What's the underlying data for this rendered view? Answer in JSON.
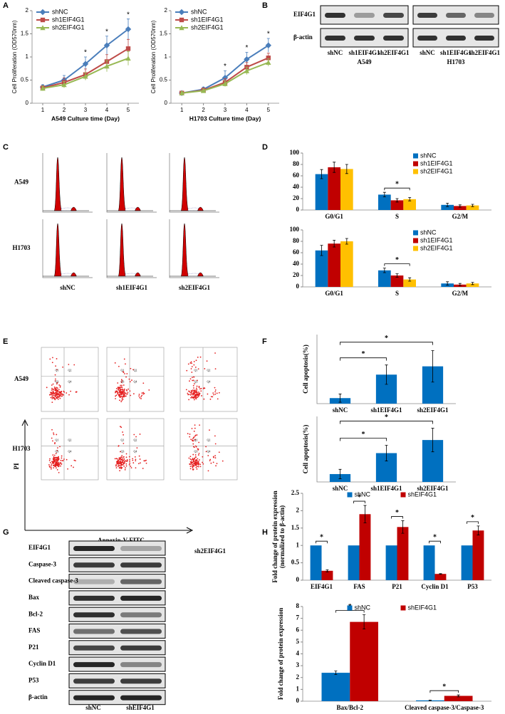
{
  "panel_labels": [
    "A",
    "B",
    "C",
    "D",
    "E",
    "F",
    "G",
    "H"
  ],
  "blot_B": {
    "rows": [
      "EIF4G1",
      "β-actin"
    ],
    "lanes": [
      "shNC",
      "sh1EIF4G1",
      "sh2EIF4G1",
      "shNC",
      "sh1EIF4G1",
      "sh2EIF4G1"
    ],
    "cells": [
      "A549",
      "H1703"
    ]
  },
  "cell_cycle_C": {
    "rows": [
      "A549",
      "H1703"
    ],
    "columns": [
      "shNC",
      "sh1EIF4G1",
      "sh2EIF4G1"
    ]
  },
  "flow_E": {
    "rows": [
      "A549",
      "H1703"
    ],
    "columns": [
      "shNC",
      "sh1EIF4G1",
      "sh2EIF4G1"
    ],
    "y_axis": "PI",
    "x_axis": "Annexin-V-FITC",
    "quadrants": [
      "Q1",
      "Q2",
      "Q3",
      "Q4"
    ]
  },
  "blot_G": {
    "rows": [
      "EIF4G1",
      "Caspase-3",
      "Cleaved caspase-3",
      "Bax",
      "Bcl-2",
      "FAS",
      "P21",
      "Cyclin D1",
      "P53",
      "β-actin"
    ],
    "columns": [
      "shNC",
      "shEIF4G1"
    ]
  },
  "chart_data": [
    {
      "type": "line",
      "ylabel": "Cell Proliferation (OD570nm)",
      "xlabel": "A549  Culture time (Day)",
      "legend": "upper left",
      "x": [
        1,
        2,
        3,
        4,
        5
      ],
      "xlim": [
        0.5,
        5.5
      ],
      "xticks": [
        1,
        2,
        3,
        4,
        5
      ],
      "ylim": [
        0,
        2
      ],
      "yticks": [
        0,
        0.5,
        1,
        1.5,
        2
      ],
      "series": [
        {
          "name": "shNC",
          "color": "#4a7ebb",
          "marker": "diamond",
          "values": [
            0.35,
            0.5,
            0.85,
            1.25,
            1.6
          ],
          "errors": [
            0.05,
            0.1,
            0.15,
            0.2,
            0.22
          ]
        },
        {
          "name": "sh1EIF4G1",
          "color": "#be4b48",
          "marker": "square",
          "values": [
            0.33,
            0.45,
            0.62,
            0.9,
            1.18
          ],
          "errors": [
            0.05,
            0.1,
            0.12,
            0.15,
            0.2
          ]
        },
        {
          "name": "sh2EIF4G1",
          "color": "#98b954",
          "marker": "triangle",
          "values": [
            0.32,
            0.4,
            0.58,
            0.8,
            0.97
          ],
          "errors": [
            0.05,
            0.07,
            0.08,
            0.12,
            0.15
          ]
        }
      ],
      "annotations": [
        {
          "x": 3,
          "text": "*"
        },
        {
          "x": 4,
          "text": "*"
        },
        {
          "x": 5,
          "text": "*"
        }
      ]
    },
    {
      "type": "line",
      "ylabel": "Cell Proliferation (OD570nm)",
      "xlabel": "H1703 Culture time (Day)",
      "legend": "upper left",
      "x": [
        1,
        2,
        3,
        4,
        5
      ],
      "xlim": [
        0.5,
        5.5
      ],
      "xticks": [
        1,
        2,
        3,
        4,
        5
      ],
      "ylim": [
        0,
        2
      ],
      "yticks": [
        0,
        0.5,
        1,
        1.5,
        2
      ],
      "series": [
        {
          "name": "shNC",
          "color": "#4a7ebb",
          "marker": "diamond",
          "values": [
            0.22,
            0.3,
            0.55,
            0.95,
            1.25
          ],
          "errors": [
            0.03,
            0.05,
            0.15,
            0.15,
            0.15
          ]
        },
        {
          "name": "sh1EIF4G1",
          "color": "#be4b48",
          "marker": "square",
          "values": [
            0.22,
            0.28,
            0.45,
            0.78,
            0.98
          ],
          "errors": [
            0.03,
            0.05,
            0.08,
            0.1,
            0.1
          ]
        },
        {
          "name": "sh2EIF4G1",
          "color": "#98b954",
          "marker": "triangle",
          "values": [
            0.22,
            0.27,
            0.42,
            0.7,
            0.88
          ],
          "errors": [
            0.03,
            0.04,
            0.06,
            0.08,
            0.08
          ]
        }
      ],
      "annotations": [
        {
          "x": 3,
          "text": "*"
        },
        {
          "x": 4,
          "text": "*"
        },
        {
          "x": 5,
          "text": "*"
        }
      ]
    },
    {
      "type": "bar",
      "legend": "upper right",
      "categories": [
        "G0/G1",
        "S",
        "G2/M"
      ],
      "ylim": [
        0,
        100
      ],
      "yticks": [
        0,
        20,
        40,
        60,
        80,
        100
      ],
      "series": [
        {
          "name": "shNC",
          "color": "#0070c0",
          "values": [
            63,
            27,
            9
          ],
          "errors": [
            8,
            4,
            3
          ]
        },
        {
          "name": "sh1EIF4G1",
          "color": "#c00000",
          "values": [
            75,
            17,
            7
          ],
          "errors": [
            9,
            3,
            2
          ]
        },
        {
          "name": "sh2EIF4G1",
          "color": "#ffc000",
          "values": [
            72,
            19,
            8
          ],
          "errors": [
            8,
            3,
            2
          ]
        }
      ],
      "annotations": [
        {
          "category": 1,
          "text": "*"
        }
      ]
    },
    {
      "type": "bar",
      "legend": "upper right",
      "categories": [
        "G0/G1",
        "S",
        "G2/M"
      ],
      "ylim": [
        0,
        100
      ],
      "yticks": [
        0,
        20,
        40,
        60,
        80,
        100
      ],
      "series": [
        {
          "name": "shNC",
          "color": "#0070c0",
          "values": [
            64,
            29,
            6
          ],
          "errors": [
            9,
            4,
            3
          ]
        },
        {
          "name": "sh1EIF4G1",
          "color": "#c00000",
          "values": [
            76,
            20,
            4
          ],
          "errors": [
            6,
            3,
            2
          ]
        },
        {
          "name": "sh2EIF4G1",
          "color": "#ffc000",
          "values": [
            80,
            13,
            6
          ],
          "errors": [
            5,
            3,
            2
          ]
        }
      ],
      "annotations": [
        {
          "category": 1,
          "text": "*"
        }
      ]
    },
    {
      "type": "bar",
      "ylabel": "Cell apoptosis(%)",
      "categories": [
        "shNC",
        "sh1EIF4G1",
        "sh2EIF4G1"
      ],
      "ylim": [
        0,
        25
      ],
      "color": "#0070c0",
      "values": [
        2,
        10.5,
        13.5
      ],
      "errors": [
        1.5,
        3.5,
        5.7
      ],
      "annotations": [
        {
          "between": [
            0,
            1
          ],
          "text": "*"
        },
        {
          "between": [
            0,
            2
          ],
          "text": "*"
        }
      ]
    },
    {
      "type": "bar",
      "ylabel": "Cell apoptosis(%)",
      "categories": [
        "shNC",
        "sh1EIF4G1",
        "sh2EIF4G1"
      ],
      "ylim": [
        0,
        25
      ],
      "color": "#0070c0",
      "values": [
        3,
        11,
        16
      ],
      "errors": [
        1.8,
        3,
        4.5
      ],
      "annotations": [
        {
          "between": [
            0,
            1
          ],
          "text": "*"
        },
        {
          "between": [
            0,
            2
          ],
          "text": "*"
        }
      ]
    },
    {
      "type": "bar",
      "ylabel": [
        "Fold change of protein expression",
        "(normalized to β-actin)"
      ],
      "legend": "upper center",
      "categories": [
        "EIF4G1",
        "FAS",
        "P21",
        "Cyclin D1",
        "P53"
      ],
      "ylim": [
        0,
        2.5
      ],
      "yticks": [
        0,
        0.5,
        1,
        1.5,
        2,
        2.5
      ],
      "series": [
        {
          "name": "shNC",
          "color": "#0070c0",
          "values": [
            1,
            1,
            1,
            1,
            1
          ]
        },
        {
          "name": "shEIF4G1",
          "color": "#c00000",
          "values": [
            0.27,
            1.9,
            1.53,
            0.18,
            1.43
          ],
          "errors": [
            0.03,
            0.25,
            0.18,
            0.01,
            0.13
          ]
        }
      ],
      "annotations": [
        {
          "category": 0,
          "text": "*"
        },
        {
          "category": 1,
          "text": "*"
        },
        {
          "category": 2,
          "text": "*"
        },
        {
          "category": 3,
          "text": "*"
        },
        {
          "category": 4,
          "text": "*"
        }
      ]
    },
    {
      "type": "bar",
      "ylabel": "Fold change of protein expression",
      "legend": "upper center",
      "categories": [
        "Bax/Bcl-2",
        "Cleaved caspase-3/Caspase-3"
      ],
      "ylim": [
        0,
        8
      ],
      "yticks": [
        0,
        1,
        2,
        3,
        4,
        5,
        6,
        7,
        8
      ],
      "series": [
        {
          "name": "shNC",
          "color": "#0070c0",
          "values": [
            2.4,
            0.07
          ],
          "errors": [
            0.15,
            0.02
          ]
        },
        {
          "name": "shEIF4G1",
          "color": "#c00000",
          "values": [
            6.7,
            0.45
          ],
          "errors": [
            0.6,
            0.08
          ]
        }
      ],
      "annotations": [
        {
          "category": 0,
          "text": "*"
        },
        {
          "category": 1,
          "text": "*"
        }
      ]
    }
  ]
}
